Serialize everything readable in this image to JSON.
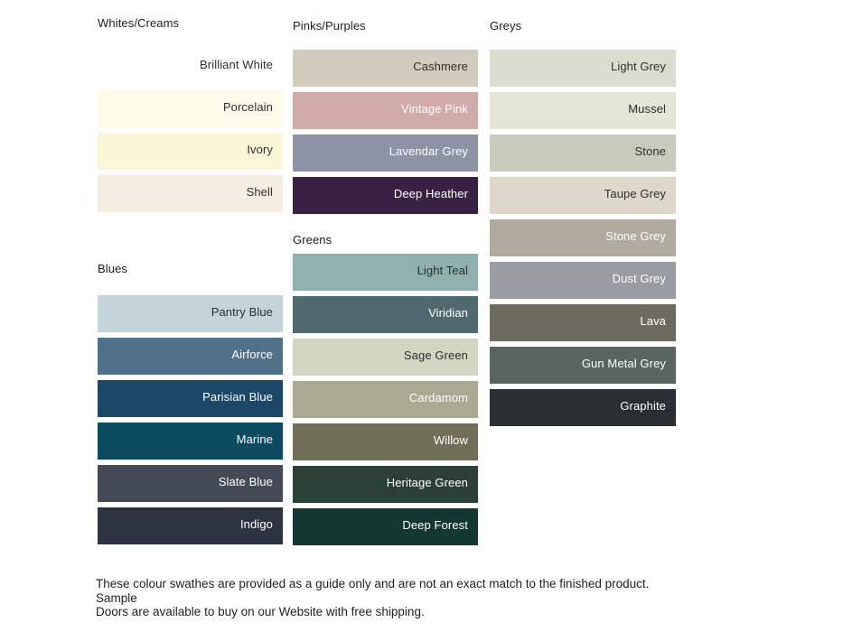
{
  "chart_data": {
    "type": "table",
    "title": "",
    "groups": {
      "whites_creams": {
        "title": "Whites/Creams",
        "swatches": [
          {
            "name": "Brilliant White",
            "hex": "#FFFFFF",
            "label_color": "#2E2E2E"
          },
          {
            "name": "Porcelain",
            "hex": "#FFFBE9",
            "label_color": "#2E2E2E"
          },
          {
            "name": "Ivory",
            "hex": "#FBF5D8",
            "label_color": "#2E2E2E"
          },
          {
            "name": "Shell",
            "hex": "#F6EEE0",
            "label_color": "#2E2E2E"
          }
        ]
      },
      "blues": {
        "title": "Blues",
        "swatches": [
          {
            "name": "Pantry Blue",
            "hex": "#C3D4DB",
            "label_color": "#2E2E2E"
          },
          {
            "name": "Airforce",
            "hex": "#51718B",
            "label_color": "#FFFFFF"
          },
          {
            "name": "Parisian Blue",
            "hex": "#1C4767",
            "label_color": "#FFFFFF"
          },
          {
            "name": "Marine",
            "hex": "#0B4A5F",
            "label_color": "#FFFFFF"
          },
          {
            "name": "Slate Blue",
            "hex": "#444B57",
            "label_color": "#FFFFFF"
          },
          {
            "name": "Indigo",
            "hex": "#2D3441",
            "label_color": "#FFFFFF"
          }
        ]
      },
      "pinks_purples": {
        "title": "Pinks/Purples",
        "swatches": [
          {
            "name": "Cashmere",
            "hex": "#D2CCBC",
            "label_color": "#2E2E2E"
          },
          {
            "name": "Vintage Pink",
            "hex": "#D0ABA8",
            "label_color": "#FFFFFF"
          },
          {
            "name": "Lavendar Grey",
            "hex": "#8D93A5",
            "label_color": "#FFFFFF"
          },
          {
            "name": "Deep Heather",
            "hex": "#3A2042",
            "label_color": "#FFFFFF"
          }
        ]
      },
      "greens": {
        "title": "Greens",
        "swatches": [
          {
            "name": "Light Teal",
            "hex": "#8FB1AD",
            "label_color": "#2E2E2E"
          },
          {
            "name": "Viridian",
            "hex": "#4E6A6F",
            "label_color": "#FFFFFF"
          },
          {
            "name": "Sage Green",
            "hex": "#D3D6C0",
            "label_color": "#2E2E2E"
          },
          {
            "name": "Cardamom",
            "hex": "#A8AB91",
            "label_color": "#FFFFFF"
          },
          {
            "name": "Willow",
            "hex": "#716F58",
            "label_color": "#FFFFFF"
          },
          {
            "name": "Heritage Green",
            "hex": "#2B4136",
            "label_color": "#FFFFFF"
          },
          {
            "name": "Deep Forest",
            "hex": "#133731",
            "label_color": "#FFFFFF"
          }
        ]
      },
      "greys": {
        "title": "Greys",
        "swatches": [
          {
            "name": "Light Grey",
            "hex": "#DBDDD1",
            "label_color": "#2E2E2E"
          },
          {
            "name": "Mussel",
            "hex": "#E3E5D5",
            "label_color": "#2E2E2E"
          },
          {
            "name": "Stone",
            "hex": "#C9CCBC",
            "label_color": "#2E2E2E"
          },
          {
            "name": "Taupe Grey",
            "hex": "#DED8CA",
            "label_color": "#2E2E2E"
          },
          {
            "name": "Stone Grey",
            "hex": "#B1AB9F",
            "label_color": "#FFFFFF"
          },
          {
            "name": "Dust Grey",
            "hex": "#9A9CA3",
            "label_color": "#FFFFFF"
          },
          {
            "name": "Lava",
            "hex": "#6D6B5F",
            "label_color": "#FFFFFF"
          },
          {
            "name": "Gun Metal Grey",
            "hex": "#586561",
            "label_color": "#FFFFFF"
          },
          {
            "name": "Graphite",
            "hex": "#292E33",
            "label_color": "#FFFFFF"
          }
        ]
      }
    }
  },
  "footer": {
    "line1": "These colour swathes are provided as a guide only and are not an exact match to the finished product.  Sample",
    "line2": "Doors are available to buy on our Website with free shipping."
  }
}
